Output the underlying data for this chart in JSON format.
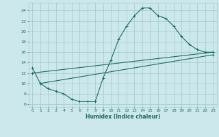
{
  "xlabel": "Humidex (Indice chaleur)",
  "ylabel": "",
  "xlim": [
    -0.5,
    23.5
  ],
  "ylim": [
    5.5,
    25.5
  ],
  "xticks": [
    0,
    1,
    2,
    3,
    4,
    5,
    6,
    7,
    8,
    9,
    10,
    11,
    12,
    13,
    14,
    15,
    16,
    17,
    18,
    19,
    20,
    21,
    22,
    23
  ],
  "yticks": [
    6,
    8,
    10,
    12,
    14,
    16,
    18,
    20,
    22,
    24
  ],
  "bg_color": "#cce8ec",
  "grid_color": "#a0c8cc",
  "line_color": "#1a6b5e",
  "curve1_x": [
    0,
    1,
    2,
    3,
    4,
    5,
    6,
    7,
    8,
    9,
    10,
    11,
    12,
    13,
    14,
    15,
    16,
    17,
    18,
    19,
    20,
    21,
    22,
    23
  ],
  "curve1_y": [
    13,
    10,
    9,
    8.5,
    8,
    7,
    6.5,
    6.5,
    6.5,
    11,
    14.5,
    18.5,
    21,
    23,
    24.5,
    24.5,
    23,
    22.5,
    21,
    19,
    17.5,
    16.5,
    16,
    16
  ],
  "curve2_x": [
    0,
    23
  ],
  "curve2_y": [
    12.0,
    16.0
  ],
  "curve3_x": [
    1,
    23
  ],
  "curve3_y": [
    10.0,
    15.5
  ],
  "marker": "+"
}
